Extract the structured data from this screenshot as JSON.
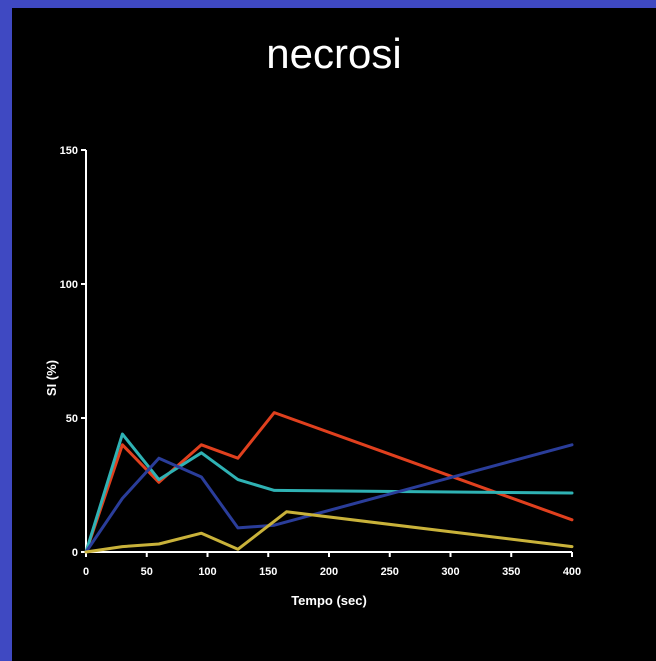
{
  "title": "necrosi",
  "chart_data": {
    "type": "line",
    "title": "necrosi",
    "xlabel": "Tempo (sec)",
    "ylabel": "SI (%)",
    "xlim": [
      0,
      400
    ],
    "ylim": [
      0,
      150
    ],
    "x_ticks": [
      0,
      50,
      100,
      150,
      200,
      250,
      300,
      350,
      400
    ],
    "y_ticks": [
      0,
      50,
      100,
      150
    ],
    "grid": false,
    "legend": "none",
    "series": [
      {
        "color": "#e0401e",
        "x": [
          0,
          30,
          60,
          95,
          125,
          155,
          400
        ],
        "y": [
          0,
          40,
          26,
          40,
          35,
          52,
          12
        ]
      },
      {
        "color": "#2fb2b4",
        "x": [
          0,
          30,
          60,
          95,
          125,
          155,
          400
        ],
        "y": [
          0,
          44,
          27,
          37,
          27,
          23,
          22
        ]
      },
      {
        "color": "#2a3d9a",
        "x": [
          0,
          30,
          60,
          95,
          125,
          155,
          400
        ],
        "y": [
          0,
          20,
          35,
          28,
          9,
          10,
          40
        ]
      },
      {
        "color": "#c9b23a",
        "x": [
          0,
          30,
          60,
          95,
          125,
          165,
          400
        ],
        "y": [
          0,
          2,
          3,
          7,
          1,
          15,
          2
        ]
      }
    ]
  }
}
